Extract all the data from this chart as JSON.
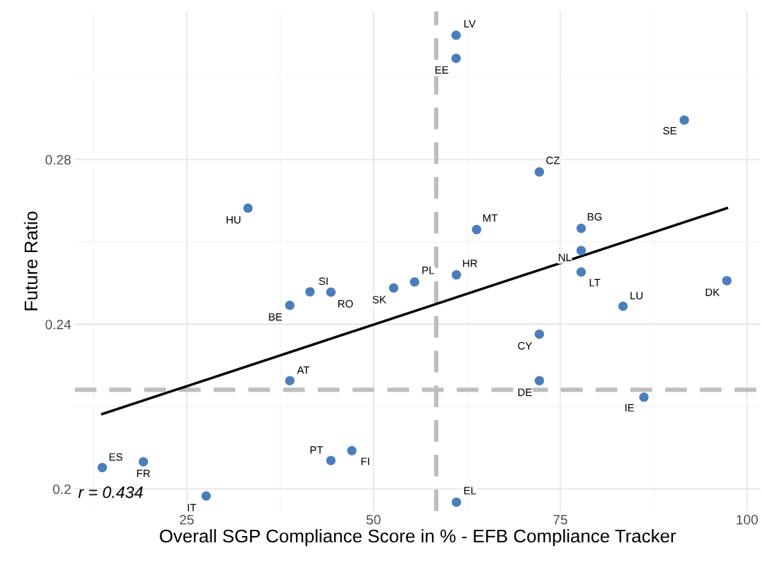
{
  "chart_data": {
    "type": "scatter",
    "xlabel": "Overall SGP Compliance Score in % - EFB Compliance Tracker",
    "ylabel": "Future Ratio",
    "xlim": [
      10,
      101.8
    ],
    "xticks": [
      25,
      50,
      75,
      100
    ],
    "ylim": [
      0.1946,
      0.316
    ],
    "yticks": [
      0.2,
      0.24,
      0.28
    ],
    "grid": true,
    "series": [
      {
        "marker": "circle",
        "color": "#4a7ebb",
        "x": [
          61.06,
          61.06,
          91.6,
          72.2,
          33.2,
          63.8,
          77.8,
          77.8,
          77.8,
          97.3,
          83.4,
          61.1,
          55.5,
          52.7,
          41.5,
          44.3,
          38.8,
          72.2,
          38.8,
          72.2,
          86.2,
          44.3,
          47.1,
          13.7,
          19.2,
          27.6,
          61.1
        ],
        "values": [
          0.3102,
          0.3046,
          0.2896,
          0.277,
          0.2682,
          0.263,
          0.2633,
          0.2579,
          0.2527,
          0.2506,
          0.2444,
          0.252,
          0.2503,
          0.2488,
          0.2479,
          0.2478,
          0.2446,
          0.2376,
          0.2263,
          0.2263,
          0.2223,
          0.2069,
          0.2093,
          0.2052,
          0.2066,
          0.1983,
          0.1968
        ]
      },
      {
        "type": "line",
        "color": "#000000",
        "x": [
          13.7,
          97.3
        ],
        "values": [
          0.2182,
          0.2682
        ],
        "line_style": "solid"
      }
    ],
    "ref_lines": [
      {
        "axis": "x",
        "value": 58.4,
        "color": "#bebebe",
        "line_style": "dashed"
      },
      {
        "axis": "y",
        "value": 0.2241,
        "color": "#bebebe",
        "line_style": "dashed"
      }
    ],
    "annotations": [
      {
        "text": "LV",
        "x": 61.06,
        "y": 0.3102
      },
      {
        "text": "EE",
        "x": 61.06,
        "y": 0.3046
      },
      {
        "text": "SE",
        "x": 91.6,
        "y": 0.2896
      },
      {
        "text": "CZ",
        "x": 72.2,
        "y": 0.277
      },
      {
        "text": "HU",
        "x": 33.2,
        "y": 0.2682
      },
      {
        "text": "MT",
        "x": 63.8,
        "y": 0.263
      },
      {
        "text": "BG",
        "x": 77.8,
        "y": 0.2633
      },
      {
        "text": "NL",
        "x": 77.8,
        "y": 0.2579
      },
      {
        "text": "LT",
        "x": 77.8,
        "y": 0.2527
      },
      {
        "text": "DK",
        "x": 97.3,
        "y": 0.2506
      },
      {
        "text": "LU",
        "x": 83.4,
        "y": 0.2444
      },
      {
        "text": "HR",
        "x": 61.1,
        "y": 0.252
      },
      {
        "text": "PL",
        "x": 55.5,
        "y": 0.2503
      },
      {
        "text": "SK",
        "x": 52.7,
        "y": 0.2488
      },
      {
        "text": "SI",
        "x": 41.5,
        "y": 0.2479
      },
      {
        "text": "RO",
        "x": 44.3,
        "y": 0.2478
      },
      {
        "text": "BE",
        "x": 38.8,
        "y": 0.2446
      },
      {
        "text": "CY",
        "x": 72.2,
        "y": 0.2376
      },
      {
        "text": "AT",
        "x": 38.8,
        "y": 0.2263
      },
      {
        "text": "DE",
        "x": 72.2,
        "y": 0.2263
      },
      {
        "text": "IE",
        "x": 86.2,
        "y": 0.2223
      },
      {
        "text": "PT",
        "x": 44.3,
        "y": 0.2069
      },
      {
        "text": "FI",
        "x": 47.1,
        "y": 0.2093
      },
      {
        "text": "ES",
        "x": 13.7,
        "y": 0.2052
      },
      {
        "text": "FR",
        "x": 19.2,
        "y": 0.2066
      },
      {
        "text": "IT",
        "x": 27.6,
        "y": 0.1983
      },
      {
        "text": "EL",
        "x": 61.1,
        "y": 0.1968
      },
      "r = 0.434"
    ]
  }
}
